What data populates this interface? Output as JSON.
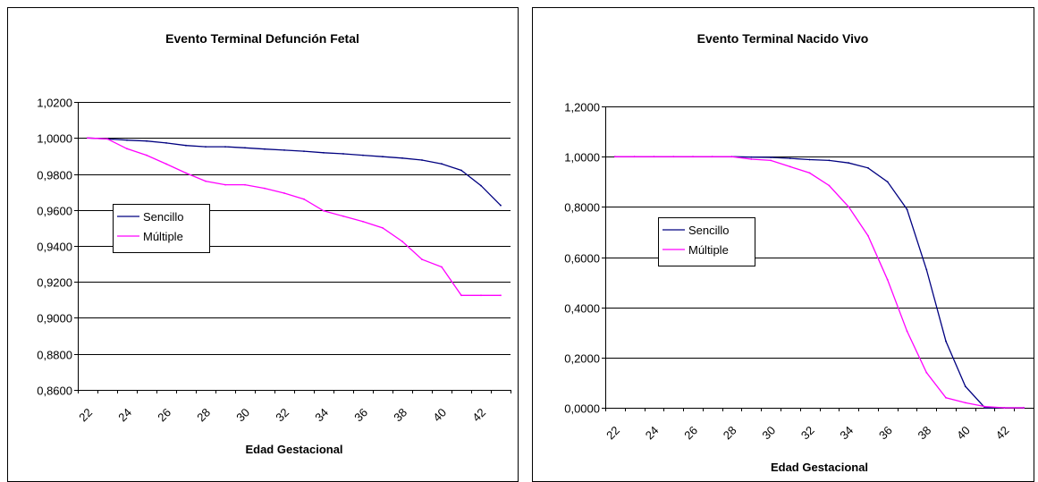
{
  "chart_data": [
    {
      "type": "line",
      "title": "Evento Terminal Defunción Fetal",
      "xlabel": "Edad Gestacional",
      "ylabel": "",
      "x": [
        22,
        23,
        24,
        25,
        26,
        27,
        28,
        29,
        30,
        31,
        32,
        33,
        34,
        35,
        36,
        37,
        38,
        39,
        40,
        41,
        42,
        43
      ],
      "x_tick_labels": [
        "22",
        "24",
        "26",
        "28",
        "30",
        "32",
        "34",
        "36",
        "38",
        "40",
        "42"
      ],
      "y_tick_labels": [
        "1,0200",
        "1,0000",
        "0,9800",
        "0,9600",
        "0,9400",
        "0,9200",
        "0,9000",
        "0,8800",
        "0,8600"
      ],
      "ylim": [
        0.86,
        1.02
      ],
      "grid": true,
      "legend_position": "left",
      "series": [
        {
          "name": "Sencillo",
          "color": "#000080",
          "values": [
            1.0,
            0.9995,
            0.9988,
            0.9983,
            0.9972,
            0.9958,
            0.9951,
            0.9951,
            0.9945,
            0.9938,
            0.9932,
            0.9926,
            0.9918,
            0.9912,
            0.9904,
            0.9896,
            0.9888,
            0.9877,
            0.9856,
            0.982,
            0.9735,
            0.9625
          ]
        },
        {
          "name": "Múltiple",
          "color": "#FF00FF",
          "values": [
            1.0,
            0.9995,
            0.994,
            0.9904,
            0.9855,
            0.9805,
            0.976,
            0.974,
            0.974,
            0.972,
            0.9693,
            0.966,
            0.9595,
            0.9565,
            0.9535,
            0.95,
            0.9425,
            0.9325,
            0.9283,
            0.9125,
            0.9125,
            0.9125
          ]
        }
      ]
    },
    {
      "type": "line",
      "title": "Evento Terminal Nacido Vivo",
      "xlabel": "Edad Gestacional",
      "ylabel": "",
      "x": [
        22,
        23,
        24,
        25,
        26,
        27,
        28,
        29,
        30,
        31,
        32,
        33,
        34,
        35,
        36,
        37,
        38,
        39,
        40,
        41,
        42,
        43
      ],
      "x_tick_labels": [
        "22",
        "24",
        "26",
        "28",
        "30",
        "32",
        "34",
        "36",
        "38",
        "40",
        "42"
      ],
      "y_tick_labels": [
        "1,2000",
        "1,0000",
        "0,8000",
        "0,6000",
        "0,4000",
        "0,2000",
        "0,0000"
      ],
      "ylim": [
        0,
        1.2
      ],
      "grid": true,
      "legend_position": "left",
      "series": [
        {
          "name": "Sencillo",
          "color": "#000080",
          "values": [
            1.0,
            1.0,
            1.0,
            1.0,
            1.0,
            1.0,
            1.0,
            0.998,
            0.997,
            0.993,
            0.988,
            0.985,
            0.975,
            0.955,
            0.9,
            0.79,
            0.55,
            0.265,
            0.085,
            0.0,
            0.0,
            0.0
          ]
        },
        {
          "name": "Múltiple",
          "color": "#FF00FF",
          "values": [
            1.0,
            1.0,
            1.0,
            1.0,
            1.0,
            1.0,
            1.0,
            0.99,
            0.985,
            0.96,
            0.935,
            0.885,
            0.8,
            0.685,
            0.51,
            0.305,
            0.14,
            0.04,
            0.02,
            0.005,
            0.0,
            0.0
          ]
        }
      ]
    }
  ]
}
